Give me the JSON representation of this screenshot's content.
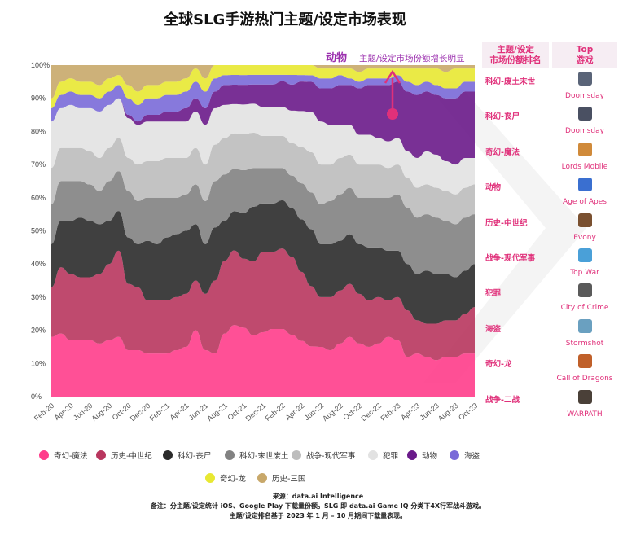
{
  "title": "全球SLG手游热门主题/设定市场表现",
  "annotation": {
    "bold": "动物",
    "text": "主题/设定市场份额增长明显"
  },
  "rank_header": {
    "line1": "主题/设定",
    "line2": "市场份额排名"
  },
  "top_header": {
    "line1": "Top",
    "line2": "游戏"
  },
  "rankings": [
    {
      "theme": "科幻-废土末世",
      "game": "Doomsday",
      "icon_color": "#5a6478"
    },
    {
      "theme": "科幻-丧尸",
      "game": "Doomsday",
      "icon_color": "#4a5062"
    },
    {
      "theme": "奇幻-魔法",
      "game": "Lords Mobile",
      "icon_color": "#d08a3a"
    },
    {
      "theme": "动物",
      "game": "Age of Apes",
      "icon_color": "#3a6fd0"
    },
    {
      "theme": "历史-中世纪",
      "game": "Evony",
      "icon_color": "#7a5030"
    },
    {
      "theme": "战争-现代军事",
      "game": "Top War",
      "icon_color": "#4aa0d8"
    },
    {
      "theme": "犯罪",
      "game": "City of Crime",
      "icon_color": "#5a5a5a"
    },
    {
      "theme": "海盗",
      "game": "Stormshot",
      "icon_color": "#6aa0c0"
    },
    {
      "theme": "奇幻-龙",
      "game": "Call of Dragons",
      "icon_color": "#c0602a"
    },
    {
      "theme": "战争-二战",
      "game": "WARPATH",
      "icon_color": "#4a4038"
    }
  ],
  "chart_data": {
    "type": "area",
    "stacked": true,
    "normalized": true,
    "title": "全球SLG手游热门主题/设定市场表现",
    "x": [
      "Feb-20",
      "Mar-20",
      "Apr-20",
      "May-20",
      "Jun-20",
      "Jul-20",
      "Aug-20",
      "Sep-20",
      "Oct-20",
      "Nov-20",
      "Dec-20",
      "Jan-21",
      "Feb-21",
      "Mar-21",
      "Apr-21",
      "May-21",
      "Jun-21",
      "Jul-21",
      "Aug-21",
      "Sep-21",
      "Oct-21",
      "Nov-21",
      "Dec-21",
      "Jan-22",
      "Feb-22",
      "Mar-22",
      "Apr-22",
      "May-22",
      "Jun-22",
      "Jul-22",
      "Aug-22",
      "Sep-22",
      "Oct-22",
      "Nov-22",
      "Dec-22",
      "Jan-23",
      "Feb-23",
      "Mar-23",
      "Apr-23",
      "May-23",
      "Jun-23",
      "Jul-23",
      "Aug-23",
      "Sep-23",
      "Oct-23"
    ],
    "x_tick_labels": [
      "Feb-20",
      "Apr-20",
      "Jun-20",
      "Aug-20",
      "Oct-20",
      "Dec-20",
      "Feb-21",
      "Apr-21",
      "Jun-21",
      "Aug-21",
      "Oct-21",
      "Dec-21",
      "Feb-22",
      "Apr-22",
      "Jun-22",
      "Aug-22",
      "Oct-22",
      "Dec-22",
      "Feb-23",
      "Apr-23",
      "Jun-23",
      "Aug-23",
      "Oct-23"
    ],
    "y_ticks": [
      "0%",
      "10%",
      "20%",
      "30%",
      "40%",
      "50%",
      "60%",
      "70%",
      "80%",
      "90%",
      "100%"
    ],
    "ylim": [
      0,
      100
    ],
    "series": [
      {
        "name": "奇幻-魔法",
        "color": "#ff3d8b",
        "values": [
          18,
          19,
          17,
          17,
          17,
          16,
          17,
          18,
          14,
          14,
          13,
          13,
          13,
          14,
          15,
          20,
          14,
          13,
          19,
          22,
          21,
          19,
          20,
          21,
          21,
          19,
          17,
          15,
          15,
          14,
          16,
          18,
          16,
          15,
          16,
          18,
          17,
          12,
          13,
          12,
          11,
          12,
          12,
          13,
          13
        ]
      },
      {
        "name": "历史-中世纪",
        "color": "#b8365e",
        "values": [
          15,
          20,
          20,
          19,
          19,
          21,
          23,
          26,
          20,
          19,
          16,
          16,
          16,
          16,
          16,
          15,
          17,
          22,
          22,
          23,
          21,
          23,
          25,
          24,
          25,
          24,
          21,
          18,
          15,
          16,
          16,
          16,
          15,
          14,
          14,
          11,
          13,
          14,
          10,
          10,
          11,
          11,
          11,
          12,
          14
        ]
      },
      {
        "name": "科幻-丧尸",
        "color": "#2b2b2b",
        "values": [
          13,
          14,
          16,
          18,
          17,
          15,
          13,
          12,
          14,
          13,
          18,
          17,
          19,
          19,
          19,
          17,
          15,
          16,
          12,
          12,
          14,
          17,
          15,
          15,
          15,
          15,
          16,
          17,
          16,
          16,
          15,
          15,
          15,
          16,
          15,
          15,
          14,
          14,
          14,
          16,
          15,
          14,
          13,
          13,
          13
        ]
      },
      {
        "name": "科幻-末世废土",
        "color": "#828282",
        "values": [
          12,
          12,
          12,
          11,
          11,
          10,
          12,
          12,
          14,
          13,
          13,
          14,
          12,
          11,
          11,
          12,
          13,
          14,
          14,
          13,
          13,
          12,
          11,
          11,
          10,
          10,
          11,
          11,
          12,
          13,
          14,
          14,
          14,
          15,
          15,
          16,
          17,
          17,
          17,
          17,
          17,
          16,
          16,
          16,
          15
        ]
      },
      {
        "name": "战争-现代军事",
        "color": "#bdbdbd",
        "values": [
          11,
          10,
          10,
          10,
          10,
          10,
          10,
          10,
          10,
          11,
          11,
          11,
          12,
          12,
          11,
          11,
          11,
          11,
          11,
          11,
          11,
          11,
          10,
          10,
          10,
          10,
          11,
          12,
          12,
          11,
          11,
          10,
          10,
          10,
          10,
          9,
          9,
          9,
          9,
          9,
          9,
          9,
          9,
          9,
          9
        ]
      },
      {
        "name": "犯罪",
        "color": "#e2e2e2",
        "values": [
          14,
          12,
          13,
          12,
          13,
          14,
          13,
          12,
          12,
          12,
          12,
          12,
          11,
          11,
          11,
          11,
          12,
          11,
          10,
          9,
          9,
          9,
          9,
          9,
          9,
          10,
          11,
          12,
          13,
          12,
          10,
          9,
          9,
          9,
          8,
          8,
          8,
          8,
          9,
          10,
          10,
          9,
          9,
          9,
          8
        ]
      },
      {
        "name": "动物",
        "color": "#6a1a8a",
        "values": [
          0,
          0,
          0,
          0,
          0,
          0,
          0,
          0,
          1,
          1,
          2,
          2,
          3,
          3,
          4,
          4,
          5,
          5,
          6,
          6,
          6,
          6,
          7,
          7,
          8,
          8,
          9,
          9,
          10,
          11,
          12,
          12,
          14,
          15,
          16,
          17,
          17,
          18,
          19,
          18,
          18,
          19,
          20,
          20,
          20
        ]
      },
      {
        "name": "海盗",
        "color": "#7a6ad8",
        "values": [
          4,
          4,
          4,
          4,
          4,
          4,
          4,
          4,
          5,
          5,
          5,
          5,
          5,
          5,
          5,
          5,
          5,
          4,
          3,
          3,
          3,
          3,
          3,
          3,
          2,
          3,
          2,
          2,
          3,
          3,
          3,
          2,
          2,
          2,
          2,
          2,
          2,
          3,
          3,
          3,
          3,
          3,
          3,
          3,
          3
        ]
      },
      {
        "name": "奇幻-龙",
        "color": "#e8e832",
        "values": [
          3,
          4,
          4,
          4,
          4,
          4,
          4,
          3,
          4,
          4,
          4,
          4,
          4,
          4,
          4,
          4,
          4,
          4,
          3,
          3,
          3,
          3,
          3,
          3,
          3,
          3,
          3,
          3,
          3,
          3,
          2,
          3,
          3,
          3,
          3,
          3,
          2,
          4,
          5,
          4,
          5,
          5,
          6,
          4,
          4
        ]
      },
      {
        "name": "历史-三国",
        "color": "#c8a86a",
        "values": [
          10,
          5,
          4,
          5,
          5,
          6,
          4,
          3,
          6,
          8,
          6,
          6,
          5,
          5,
          4,
          1,
          4,
          0,
          0,
          0,
          0,
          0,
          0,
          0,
          0,
          0,
          0,
          0,
          1,
          1,
          1,
          1,
          2,
          1,
          1,
          1,
          1,
          1,
          1,
          1,
          1,
          2,
          1,
          1,
          1
        ]
      }
    ]
  },
  "footer": {
    "source": "来源：data.ai Intelligence",
    "note1": "备注：分主题/设定统计 iOS、Google Play 下载量份额。SLG 即 data.ai Game IQ 分类下4X行军战斗游戏。",
    "note2": "主题/设定排名基于 2023 年 1 月 – 10 月期间下载量表现。"
  }
}
